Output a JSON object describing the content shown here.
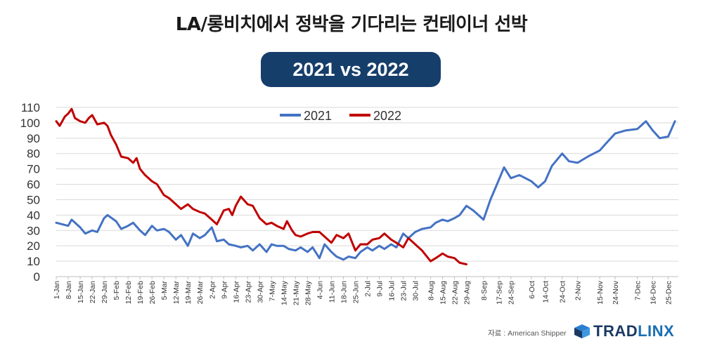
{
  "header": {
    "title": "LA/롱비치에서 정박을 기다리는 컨테이너 선박",
    "badge": "2021 vs 2022"
  },
  "footer": {
    "source": "자료 : American Shipper",
    "logo_part1": "TRAD",
    "logo_part2": "LINX"
  },
  "colors": {
    "series_2021": "#4472c4",
    "series_2022": "#c00000",
    "badge_bg": "#163e6b",
    "logo_dark": "#1b3a63",
    "logo_light": "#1a6fb3"
  },
  "chart_data": {
    "type": "line",
    "title": "",
    "ylim": [
      0,
      110
    ],
    "yticks": [
      0,
      10,
      20,
      30,
      40,
      50,
      60,
      70,
      80,
      90,
      100,
      110
    ],
    "grid": "horizontal",
    "legend_position": "top-center",
    "x_tick_labels": [
      "1-Jan",
      "8-Jan",
      "15-Jan",
      "22-Jan",
      "29-Jan",
      "5-Feb",
      "12-Feb",
      "19-Feb",
      "26-Feb",
      "5-Mar",
      "12-Mar",
      "19-Mar",
      "26-Mar",
      "2-Apr",
      "9-Apr",
      "16-Apr",
      "23-Apr",
      "30-Apr",
      "7-May",
      "14-May",
      "21-May",
      "28-May",
      "4-Jun",
      "11-Jun",
      "18-Jun",
      "25-Jun",
      "2-Jul",
      "9-Jul",
      "16-Jul",
      "23-Jul",
      "30-Jul",
      "8-Aug",
      "15-Aug",
      "22-Aug",
      "29-Aug",
      "8-Sep",
      "17-Sep",
      "24-Sep",
      "6-Oct",
      "14-Oct",
      "24-Oct",
      "2-Nov",
      "15-Nov",
      "24-Nov",
      "7-Dec",
      "16-Dec",
      "25-Dec"
    ],
    "series": [
      {
        "name": "2021",
        "points": [
          [
            "1-Jan",
            35
          ],
          [
            "8-Jan",
            33
          ],
          [
            "10-Jan",
            37
          ],
          [
            "15-Jan",
            32
          ],
          [
            "18-Jan",
            28
          ],
          [
            "22-Jan",
            30
          ],
          [
            "25-Jan",
            29
          ],
          [
            "29-Jan",
            38
          ],
          [
            "31-Jan",
            40
          ],
          [
            "5-Feb",
            36
          ],
          [
            "8-Feb",
            31
          ],
          [
            "12-Feb",
            33
          ],
          [
            "15-Feb",
            35
          ],
          [
            "19-Feb",
            30
          ],
          [
            "22-Feb",
            27
          ],
          [
            "26-Feb",
            33
          ],
          [
            "1-Mar",
            30
          ],
          [
            "5-Mar",
            31
          ],
          [
            "8-Mar",
            29
          ],
          [
            "12-Mar",
            24
          ],
          [
            "15-Mar",
            27
          ],
          [
            "19-Mar",
            20
          ],
          [
            "22-Mar",
            28
          ],
          [
            "26-Mar",
            25
          ],
          [
            "29-Mar",
            27
          ],
          [
            "2-Apr",
            32
          ],
          [
            "5-Apr",
            23
          ],
          [
            "9-Apr",
            24
          ],
          [
            "12-Apr",
            21
          ],
          [
            "16-Apr",
            20
          ],
          [
            "19-Apr",
            19
          ],
          [
            "23-Apr",
            20
          ],
          [
            "26-Apr",
            17
          ],
          [
            "30-Apr",
            21
          ],
          [
            "4-May",
            16
          ],
          [
            "7-May",
            21
          ],
          [
            "10-May",
            20
          ],
          [
            "14-May",
            20
          ],
          [
            "17-May",
            18
          ],
          [
            "21-May",
            17
          ],
          [
            "24-May",
            19
          ],
          [
            "28-May",
            16
          ],
          [
            "31-May",
            19
          ],
          [
            "4-Jun",
            12
          ],
          [
            "7-Jun",
            21
          ],
          [
            "11-Jun",
            16
          ],
          [
            "14-Jun",
            13
          ],
          [
            "18-Jun",
            11
          ],
          [
            "21-Jun",
            13
          ],
          [
            "25-Jun",
            12
          ],
          [
            "28-Jun",
            16
          ],
          [
            "2-Jul",
            19
          ],
          [
            "5-Jul",
            17
          ],
          [
            "9-Jul",
            20
          ],
          [
            "12-Jul",
            18
          ],
          [
            "16-Jul",
            21
          ],
          [
            "19-Jul",
            19
          ],
          [
            "23-Jul",
            28
          ],
          [
            "26-Jul",
            25
          ],
          [
            "30-Jul",
            29
          ],
          [
            "3-Aug",
            31
          ],
          [
            "8-Aug",
            32
          ],
          [
            "11-Aug",
            35
          ],
          [
            "15-Aug",
            37
          ],
          [
            "18-Aug",
            36
          ],
          [
            "22-Aug",
            38
          ],
          [
            "25-Aug",
            40
          ],
          [
            "29-Aug",
            46
          ],
          [
            "2-Sep",
            43
          ],
          [
            "8-Sep",
            37
          ],
          [
            "12-Sep",
            50
          ],
          [
            "17-Sep",
            63
          ],
          [
            "20-Sep",
            71
          ],
          [
            "24-Sep",
            64
          ],
          [
            "29-Sep",
            66
          ],
          [
            "6-Oct",
            62
          ],
          [
            "10-Oct",
            58
          ],
          [
            "14-Oct",
            62
          ],
          [
            "18-Oct",
            72
          ],
          [
            "24-Oct",
            80
          ],
          [
            "28-Oct",
            75
          ],
          [
            "2-Nov",
            74
          ],
          [
            "8-Nov",
            78
          ],
          [
            "15-Nov",
            82
          ],
          [
            "19-Nov",
            87
          ],
          [
            "24-Nov",
            93
          ],
          [
            "30-Nov",
            95
          ],
          [
            "7-Dec",
            96
          ],
          [
            "12-Dec",
            101
          ],
          [
            "16-Dec",
            95
          ],
          [
            "20-Dec",
            90
          ],
          [
            "25-Dec",
            91
          ],
          [
            "29-Dec",
            101
          ]
        ]
      },
      {
        "name": "2022",
        "points": [
          [
            "1-Jan",
            101
          ],
          [
            "3-Jan",
            98
          ],
          [
            "6-Jan",
            104
          ],
          [
            "8-Jan",
            106
          ],
          [
            "10-Jan",
            109
          ],
          [
            "12-Jan",
            103
          ],
          [
            "15-Jan",
            101
          ],
          [
            "18-Jan",
            100
          ],
          [
            "20-Jan",
            103
          ],
          [
            "22-Jan",
            105
          ],
          [
            "25-Jan",
            99
          ],
          [
            "29-Jan",
            100
          ],
          [
            "31-Jan",
            98
          ],
          [
            "2-Feb",
            92
          ],
          [
            "5-Feb",
            86
          ],
          [
            "8-Feb",
            78
          ],
          [
            "12-Feb",
            77
          ],
          [
            "15-Feb",
            74
          ],
          [
            "17-Feb",
            77
          ],
          [
            "19-Feb",
            70
          ],
          [
            "22-Feb",
            66
          ],
          [
            "26-Feb",
            62
          ],
          [
            "1-Mar",
            60
          ],
          [
            "5-Mar",
            53
          ],
          [
            "8-Mar",
            51
          ],
          [
            "12-Mar",
            47
          ],
          [
            "15-Mar",
            44
          ],
          [
            "19-Mar",
            47
          ],
          [
            "22-Mar",
            44
          ],
          [
            "26-Mar",
            42
          ],
          [
            "29-Mar",
            41
          ],
          [
            "2-Apr",
            37
          ],
          [
            "5-Apr",
            34
          ],
          [
            "9-Apr",
            43
          ],
          [
            "12-Apr",
            44
          ],
          [
            "14-Apr",
            40
          ],
          [
            "16-Apr",
            46
          ],
          [
            "19-Apr",
            52
          ],
          [
            "23-Apr",
            47
          ],
          [
            "26-Apr",
            46
          ],
          [
            "30-Apr",
            38
          ],
          [
            "4-May",
            34
          ],
          [
            "7-May",
            35
          ],
          [
            "10-May",
            33
          ],
          [
            "14-May",
            31
          ],
          [
            "16-May",
            36
          ],
          [
            "19-May",
            30
          ],
          [
            "21-May",
            27
          ],
          [
            "24-May",
            26
          ],
          [
            "28-May",
            28
          ],
          [
            "31-May",
            29
          ],
          [
            "4-Jun",
            29
          ],
          [
            "7-Jun",
            26
          ],
          [
            "11-Jun",
            22
          ],
          [
            "14-Jun",
            27
          ],
          [
            "18-Jun",
            25
          ],
          [
            "21-Jun",
            28
          ],
          [
            "25-Jun",
            17
          ],
          [
            "28-Jun",
            21
          ],
          [
            "2-Jul",
            21
          ],
          [
            "5-Jul",
            24
          ],
          [
            "9-Jul",
            25
          ],
          [
            "12-Jul",
            28
          ],
          [
            "16-Jul",
            24
          ],
          [
            "19-Jul",
            22
          ],
          [
            "23-Jul",
            19
          ],
          [
            "26-Jul",
            25
          ],
          [
            "30-Jul",
            21
          ],
          [
            "3-Aug",
            17
          ],
          [
            "8-Aug",
            10
          ],
          [
            "11-Aug",
            12
          ],
          [
            "15-Aug",
            15
          ],
          [
            "18-Aug",
            13
          ],
          [
            "22-Aug",
            12
          ],
          [
            "25-Aug",
            9
          ],
          [
            "29-Aug",
            8
          ]
        ]
      }
    ]
  }
}
